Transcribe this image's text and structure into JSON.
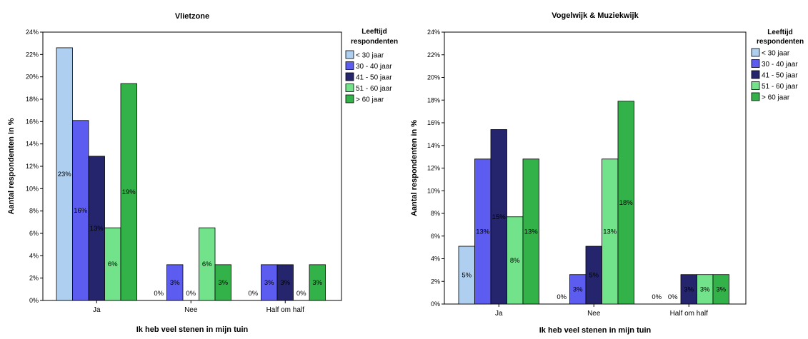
{
  "chart_data": [
    {
      "type": "bar",
      "title": "Vlietzone",
      "xlabel": "Ik heb veel stenen in mijn tuin",
      "ylabel": "Aantal respondenten in %",
      "ylim": [
        0,
        24
      ],
      "yticks": [
        "0%",
        "2%",
        "4%",
        "6%",
        "8%",
        "10%",
        "12%",
        "14%",
        "16%",
        "18%",
        "20%",
        "22%",
        "24%"
      ],
      "categories": [
        "Ja",
        "Nee",
        "Half om half"
      ],
      "legend_title": [
        "Leeftijd",
        "respondenten"
      ],
      "legend_placement": "top-right",
      "grid": false,
      "series": [
        {
          "name": "< 30 jaar",
          "color": "#aecff0",
          "values": [
            22.6,
            0,
            0
          ],
          "labels": [
            "23%",
            "0%",
            "0%"
          ]
        },
        {
          "name": "30 - 40 jaar",
          "color": "#5c5cf0",
          "values": [
            16.1,
            3.2,
            3.2
          ],
          "labels": [
            "16%",
            "3%",
            "3%"
          ]
        },
        {
          "name": "41 - 50 jaar",
          "color": "#25256e",
          "values": [
            12.9,
            0,
            3.2
          ],
          "labels": [
            "13%",
            "0%",
            "3%"
          ]
        },
        {
          "name": "51 - 60 jaar",
          "color": "#72e38a",
          "values": [
            6.5,
            6.5,
            0
          ],
          "labels": [
            "6%",
            "6%",
            "0%"
          ]
        },
        {
          "name": "> 60 jaar",
          "color": "#33b24a",
          "values": [
            19.4,
            3.2,
            3.2
          ],
          "labels": [
            "19%",
            "3%",
            "3%"
          ]
        }
      ]
    },
    {
      "type": "bar",
      "title": "Vogelwijk & Muziekwijk",
      "xlabel": "Ik heb veel stenen in mijn tuin",
      "ylabel": "Aantal respondenten in %",
      "ylim": [
        0,
        24
      ],
      "yticks": [
        "0%",
        "2%",
        "4%",
        "6%",
        "8%",
        "10%",
        "12%",
        "14%",
        "16%",
        "18%",
        "20%",
        "22%",
        "24%"
      ],
      "categories": [
        "Ja",
        "Nee",
        "Half om half"
      ],
      "legend_title": [
        "Leeftijd",
        "respondenten"
      ],
      "legend_placement": "top-right",
      "grid": false,
      "series": [
        {
          "name": "< 30 jaar",
          "color": "#aecff0",
          "values": [
            5.1,
            0,
            0
          ],
          "labels": [
            "5%",
            "0%",
            "0%"
          ]
        },
        {
          "name": "30 - 40 jaar",
          "color": "#5c5cf0",
          "values": [
            12.8,
            2.6,
            0
          ],
          "labels": [
            "13%",
            "3%",
            "0%"
          ]
        },
        {
          "name": "41 - 50 jaar",
          "color": "#25256e",
          "values": [
            15.4,
            5.1,
            2.6
          ],
          "labels": [
            "15%",
            "5%",
            "3%"
          ]
        },
        {
          "name": "51 - 60 jaar",
          "color": "#72e38a",
          "values": [
            7.7,
            12.8,
            2.6
          ],
          "labels": [
            "8%",
            "13%",
            "3%"
          ]
        },
        {
          "name": "> 60 jaar",
          "color": "#33b24a",
          "values": [
            12.8,
            17.9,
            2.6
          ],
          "labels": [
            "13%",
            "18%",
            "3%"
          ]
        }
      ]
    }
  ]
}
